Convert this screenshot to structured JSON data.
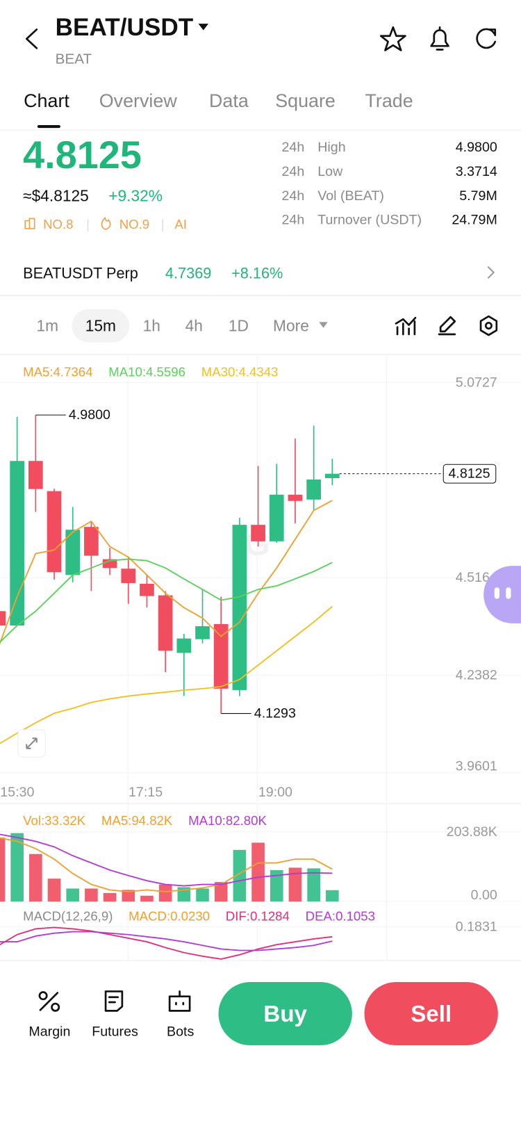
{
  "header": {
    "title": "BEAT/USDT",
    "subtitle": "BEAT"
  },
  "tabs": [
    "Chart",
    "Overview",
    "Data",
    "Square",
    "Trade"
  ],
  "price": {
    "last": "4.8125",
    "usd": "≈$4.8125",
    "change": "+9.32%",
    "badges": [
      "NO.8",
      "NO.9",
      "AI"
    ]
  },
  "stats": [
    {
      "period": "24h",
      "label": "High",
      "value": "4.9800"
    },
    {
      "period": "24h",
      "label": "Low",
      "value": "3.3714"
    },
    {
      "period": "24h",
      "label": "Vol (BEAT)",
      "value": "5.79M"
    },
    {
      "period": "24h",
      "label": "Turnover (USDT)",
      "value": "24.79M"
    }
  ],
  "perp": {
    "name": "BEATUSDT Perp",
    "price": "4.7369",
    "change": "+8.16%"
  },
  "intervals": [
    "1m",
    "15m",
    "1h",
    "4h",
    "1D",
    "More"
  ],
  "chart_data": [
    {
      "type": "candlestick",
      "categories": [
        "15:30",
        null,
        null,
        null,
        null,
        null,
        null,
        "17:15",
        null,
        null,
        null,
        null,
        null,
        null,
        "19:00",
        null,
        null,
        null,
        null
      ],
      "open": [
        4.421,
        4.38,
        4.849,
        4.763,
        4.524,
        4.661,
        4.569,
        4.542,
        4.499,
        4.466,
        4.302,
        4.341,
        4.384,
        4.196,
        4.667,
        4.62,
        4.753,
        4.739,
        4.8
      ],
      "high": [
        4.442,
        4.975,
        4.98,
        4.77,
        4.718,
        4.677,
        4.601,
        4.575,
        4.524,
        4.478,
        4.356,
        4.483,
        4.462,
        4.687,
        4.835,
        4.841,
        4.913,
        4.95,
        4.855
      ],
      "low": [
        4.37,
        4.38,
        4.704,
        4.511,
        4.503,
        4.478,
        4.524,
        4.442,
        4.431,
        4.247,
        4.179,
        4.329,
        4.1293,
        4.179,
        4.605,
        4.616,
        4.671,
        4.708,
        4.78
      ],
      "close": [
        4.38,
        4.849,
        4.769,
        4.532,
        4.653,
        4.579,
        4.544,
        4.501,
        4.464,
        4.308,
        4.343,
        4.378,
        4.2,
        4.667,
        4.62,
        4.753,
        4.735,
        4.796,
        4.8125
      ],
      "up_color": "#2ebd85",
      "down_color": "#f04e5e",
      "series": [
        {
          "name": "MA5:4.7364",
          "color": "#f0a030",
          "values": [
            4.319,
            4.462,
            4.585,
            4.595,
            4.646,
            4.677,
            4.605,
            4.575,
            4.524,
            4.472,
            4.431,
            4.401,
            4.349,
            4.39,
            4.472,
            4.544,
            4.626,
            4.708,
            4.7364
          ]
        },
        {
          "name": "MA10:4.5596",
          "color": "#5bd05b",
          "values": [
            4.329,
            4.38,
            4.421,
            4.472,
            4.524,
            4.544,
            4.565,
            4.569,
            4.565,
            4.544,
            4.513,
            4.483,
            4.452,
            4.462,
            4.483,
            4.493,
            4.513,
            4.534,
            4.5596
          ]
        },
        {
          "name": "MA30:4.4343",
          "color": "#f2c01e",
          "values": [
            4.042,
            4.073,
            4.103,
            4.13,
            4.144,
            4.161,
            4.171,
            4.179,
            4.185,
            4.19,
            4.196,
            4.2,
            4.206,
            4.226,
            4.267,
            4.308,
            4.349,
            4.39,
            4.4343
          ]
        }
      ],
      "ylim": [
        3.9601,
        5.0727
      ],
      "yticks": [
        5.0727,
        4.5164,
        4.2382,
        3.9601
      ],
      "high_label": {
        "value": 4.98,
        "label": "4.9800"
      },
      "low_label": {
        "value": 4.1293,
        "label": "4.1293"
      },
      "last_label": {
        "value": 4.8125,
        "label": "4.8125"
      }
    },
    {
      "type": "bar",
      "series": [
        {
          "name": "Vol:33.32K",
          "color": "#f0a030",
          "values": [
            187,
            200,
            139,
            67,
            38,
            38,
            25,
            34,
            17,
            50,
            42,
            38,
            57,
            151,
            172,
            92,
            99,
            97,
            33.32
          ]
        },
        {
          "name": "MA5:94.82K",
          "color": "#f0a030",
          "values": [
            187,
            176,
            155,
            124,
            82,
            50,
            34,
            29,
            34,
            29,
            34,
            40,
            50,
            82,
            113,
            113,
            124,
            124,
            94.82
          ]
        },
        {
          "name": "MA10:82.80K",
          "color": "#b23ad6",
          "values": [
            197,
            187,
            176,
            160,
            134,
            113,
            92,
            76,
            61,
            50,
            46,
            50,
            50,
            61,
            71,
            76,
            82,
            84,
            82.8
          ]
        }
      ],
      "ylim": [
        0,
        203.88
      ],
      "yticks": [
        {
          "value": 203.88,
          "label": "203.88K"
        },
        {
          "value": 0,
          "label": "0.00"
        }
      ]
    },
    {
      "type": "line",
      "title": "MACD(12,26,9)",
      "annotations": [
        {
          "text": "MACD:0.0230",
          "color": "#f0a030"
        }
      ],
      "series": [
        {
          "name": "DIF:0.1284",
          "color": "#e0307a",
          "values": [
            0.0817,
            0.1402,
            0.1714,
            0.1792,
            0.1714,
            0.1597,
            0.1402,
            0.1207,
            0.1012,
            0.07,
            0.0427,
            0.0232,
            0.0076,
            0.031,
            0.0622,
            0.0856,
            0.1012,
            0.1168,
            0.1284
          ]
        },
        {
          "name": "DEA:0.1053",
          "color": "#b23ad6",
          "values": [
            0.1012,
            0.1012,
            0.1324,
            0.148,
            0.1558,
            0.1558,
            0.148,
            0.1402,
            0.1285,
            0.1168,
            0.1012,
            0.0817,
            0.0622,
            0.0544,
            0.0544,
            0.0622,
            0.07,
            0.0817,
            0.1053
          ]
        }
      ],
      "ylim": [
        0,
        0.1831
      ],
      "yticks": [
        0.1831
      ]
    }
  ],
  "actions": [
    "Margin",
    "Futures",
    "Bots"
  ],
  "buy": "Buy",
  "sell": "Sell"
}
